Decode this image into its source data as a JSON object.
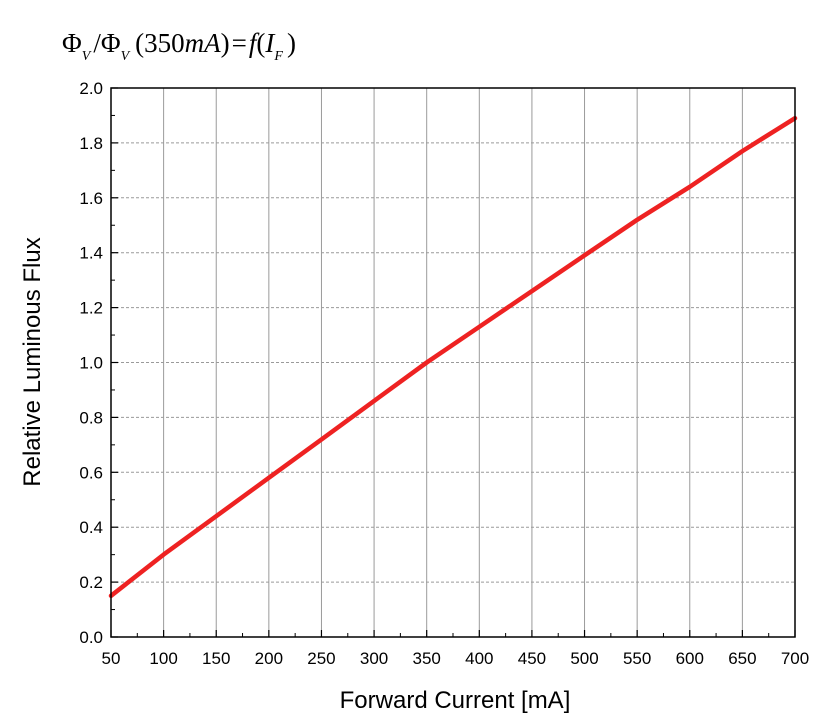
{
  "chart_data": {
    "type": "line",
    "title": {
      "phi": "Φ",
      "sub_v": "V",
      "slash": "/",
      "paren_open": "(",
      "value": "350",
      "unit": "mA",
      "paren_close": ")",
      "equals": "=",
      "func": "f",
      "var": "I",
      "sub_f": "F"
    },
    "xlabel": "Forward Current [mA]",
    "ylabel": "Relative Luminous Flux",
    "xlim": [
      50,
      700
    ],
    "ylim": [
      0.0,
      2.0
    ],
    "x_ticks": [
      "50",
      "100",
      "150",
      "200",
      "250",
      "300",
      "350",
      "400",
      "450",
      "500",
      "550",
      "600",
      "650",
      "700"
    ],
    "y_ticks": [
      "0.0",
      "0.2",
      "0.4",
      "0.6",
      "0.8",
      "1.0",
      "1.2",
      "1.4",
      "1.6",
      "1.8",
      "2.0"
    ],
    "grid": true,
    "series": [
      {
        "color": "#ee2222",
        "x": [
          50,
          100,
          150,
          200,
          250,
          300,
          350,
          400,
          450,
          500,
          550,
          600,
          650,
          700
        ],
        "y": [
          0.15,
          0.3,
          0.44,
          0.58,
          0.72,
          0.86,
          1.0,
          1.13,
          1.26,
          1.39,
          1.52,
          1.64,
          1.77,
          1.89
        ]
      }
    ]
  }
}
